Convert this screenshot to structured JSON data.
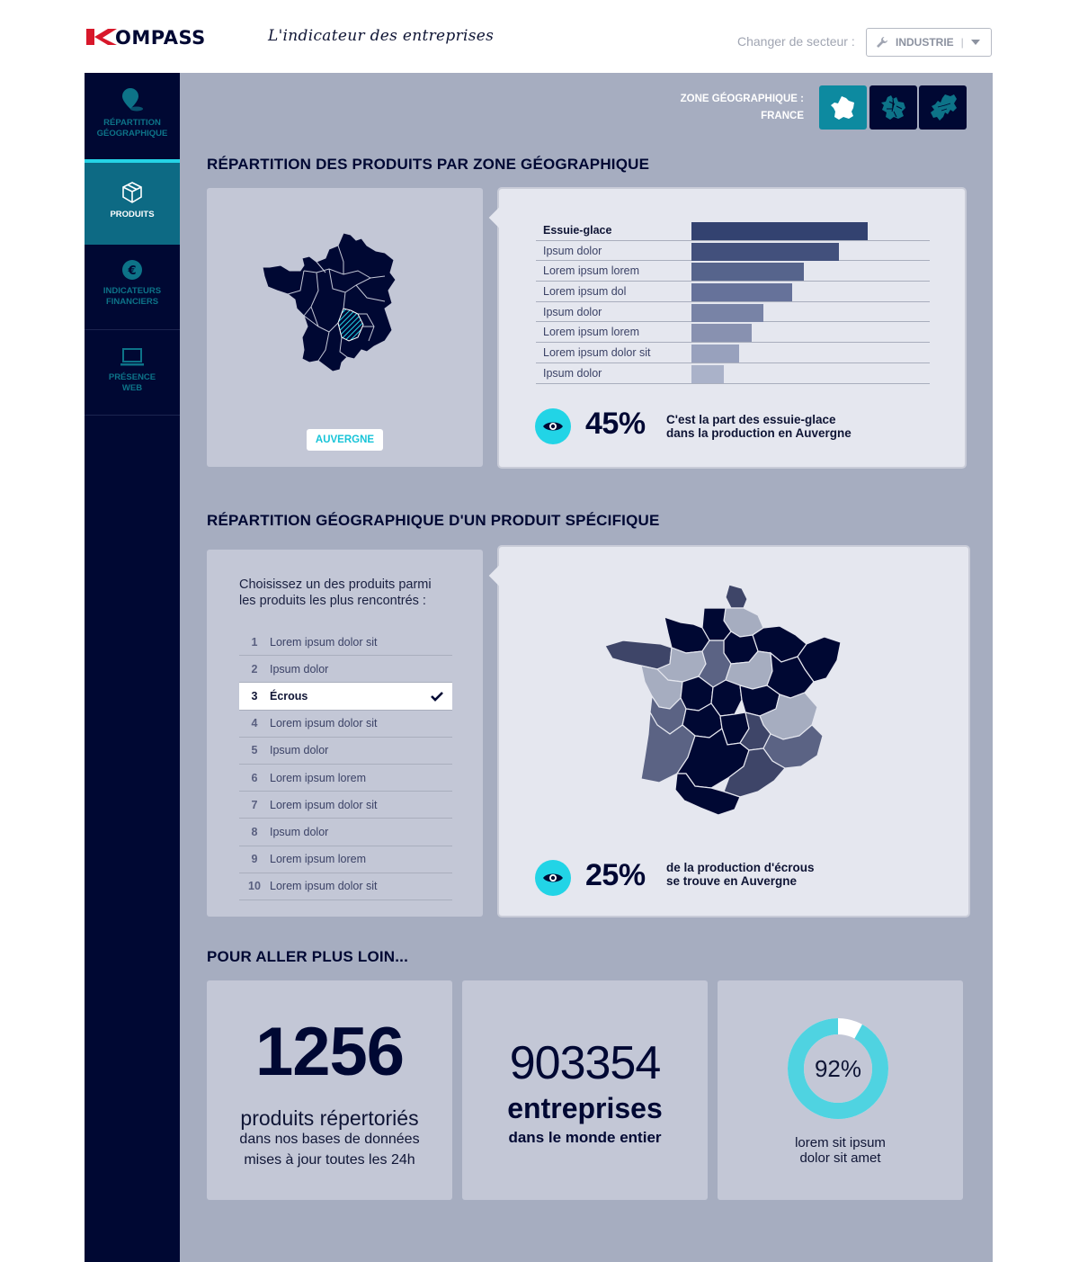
{
  "header": {
    "logo_text": "KOMPASS",
    "tagline": "L'indicateur des entreprises",
    "sector_label": "Changer de secteur :",
    "sector_value": "INDUSTRIE"
  },
  "sidebar": {
    "items": [
      {
        "label_line1": "RÉPARTITION",
        "label_line2": "GÉOGRAPHIQUE",
        "icon": "map-pin-icon"
      },
      {
        "label_line1": "PRODUITS",
        "label_line2": "",
        "icon": "box-icon"
      },
      {
        "label_line1": "INDICATEURS",
        "label_line2": "FINANCIERS",
        "icon": "euro-icon"
      },
      {
        "label_line1": "PRÉSENCE",
        "label_line2": "WEB",
        "icon": "laptop-icon"
      }
    ]
  },
  "zone": {
    "label": "ZONE GÉOGRAPHIQUE :",
    "value": "FRANCE",
    "buttons": [
      "france-map-icon",
      "europe-regions-icon",
      "europe-map-icon"
    ]
  },
  "section1": {
    "title": "RÉPARTITION DES PRODUITS PAR ZONE GÉOGRAPHIQUE",
    "region": "AUVERGNE",
    "bars": [
      {
        "label": "Essuie-glace",
        "value": 1.0,
        "color": "#334270"
      },
      {
        "label": "Ipsum dolor",
        "value": 0.835,
        "color": "#42507c"
      },
      {
        "label": "Lorem ipsum lorem",
        "value": 0.64,
        "color": "#56648c"
      },
      {
        "label": "Lorem ipsum dol",
        "value": 0.57,
        "color": "#66729a"
      },
      {
        "label": "Ipsum dolor",
        "value": 0.41,
        "color": "#7883a6"
      },
      {
        "label": "Lorem ipsum lorem",
        "value": 0.34,
        "color": "#8891b0"
      },
      {
        "label": "Lorem ipsum dolor sit",
        "value": 0.27,
        "color": "#98a1bd"
      },
      {
        "label": "Ipsum dolor",
        "value": 0.185,
        "color": "#aab2c9"
      }
    ],
    "stat_pct": "45%",
    "stat_line1": "C'est la part des essuie-glace",
    "stat_line2": "dans la production en Auvergne"
  },
  "section2": {
    "title": "RÉPARTITION GÉOGRAPHIQUE D'UN PRODUIT SPÉCIFIQUE",
    "choose_line1": "Choisissez un des produits parmi",
    "choose_line2": "les produits les plus rencontrés :",
    "products": [
      {
        "num": "1",
        "name": "Lorem ipsum dolor sit"
      },
      {
        "num": "2",
        "name": "Ipsum dolor"
      },
      {
        "num": "3",
        "name": "Écrous",
        "selected": true
      },
      {
        "num": "4",
        "name": "Lorem ipsum dolor sit"
      },
      {
        "num": "5",
        "name": "Ipsum dolor"
      },
      {
        "num": "6",
        "name": "Lorem ipsum lorem"
      },
      {
        "num": "7",
        "name": "Lorem ipsum dolor sit"
      },
      {
        "num": "8",
        "name": "Ipsum dolor"
      },
      {
        "num": "9",
        "name": "Lorem ipsum lorem"
      },
      {
        "num": "10",
        "name": "Lorem ipsum dolor sit"
      }
    ],
    "stat_pct": "25%",
    "stat_line1": "de la production d'écrous",
    "stat_line2": "se trouve en Auvergne"
  },
  "section3": {
    "title": "POUR ALLER PLUS LOIN...",
    "card1": {
      "number": "1256",
      "line1": "produits répertoriés",
      "line2": "dans nos bases de données",
      "line3": "mises à jour toutes les 24h"
    },
    "card2": {
      "number": "903354",
      "line1": "entreprises",
      "line2": "dans le monde entier"
    },
    "card3": {
      "percent_label": "92%",
      "percent": 0.92,
      "line1": "lorem sit ipsum",
      "line2": "dolor sit amet"
    }
  },
  "colors": {
    "navy": "#000833",
    "cyan": "#22d4e6",
    "teal": "#0d6a84",
    "panel": "#c3c7d6",
    "background": "#a6adc0"
  }
}
